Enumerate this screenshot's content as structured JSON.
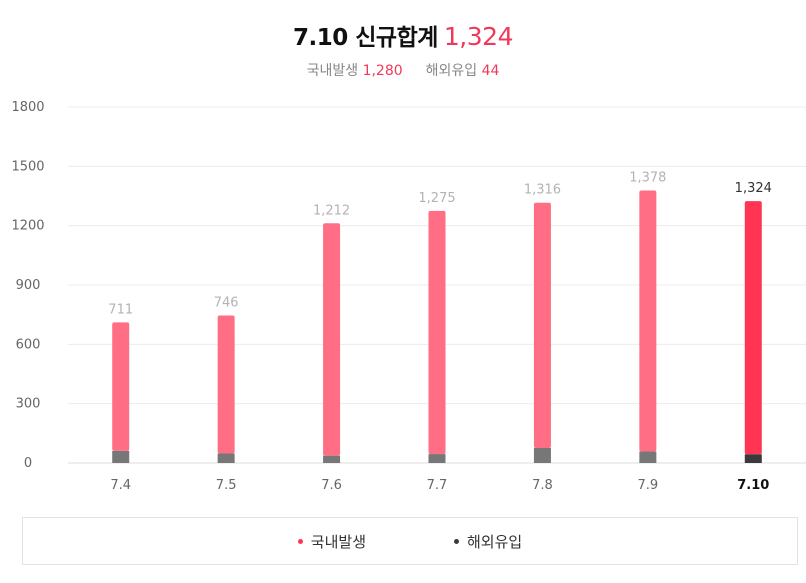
{
  "header": {
    "title_prefix": "7.10 신규합계",
    "title_total": "1,324",
    "domestic_label": "국내발생",
    "domestic_value": "1,280",
    "overseas_label": "해외유입",
    "overseas_value": "44"
  },
  "colors": {
    "domestic": "#ff6e85",
    "domestic_highlight": "#ff3553",
    "overseas": "#777777",
    "overseas_highlight": "#3a3a3a",
    "label_gray": "#b3b3b3",
    "label_dark": "#333333"
  },
  "chart_data": {
    "type": "bar",
    "stacked": true,
    "categories": [
      "7.4",
      "7.5",
      "7.6",
      "7.7",
      "7.8",
      "7.9",
      "7.10"
    ],
    "series": [
      {
        "name": "국내발생",
        "values": [
          650,
          698,
          1175,
          1230,
          1240,
          1320,
          1280
        ]
      },
      {
        "name": "해외유입",
        "values": [
          61,
          48,
          37,
          45,
          76,
          58,
          44
        ]
      }
    ],
    "totals_labels": [
      "711",
      "746",
      "1,212",
      "1,275",
      "1,316",
      "1,378",
      "1,324"
    ],
    "totals": [
      711,
      746,
      1212,
      1275,
      1316,
      1378,
      1324
    ],
    "highlight_index": 6,
    "y_ticks": [
      0,
      300,
      600,
      900,
      1200,
      1500,
      1800
    ],
    "ylim": [
      0,
      1800
    ],
    "grid": true,
    "legend_position": "bottom"
  },
  "legend": {
    "items": [
      {
        "label": "국내발생",
        "color": "#ff3553"
      },
      {
        "label": "해외유입",
        "color": "#3a3a3a"
      }
    ]
  }
}
